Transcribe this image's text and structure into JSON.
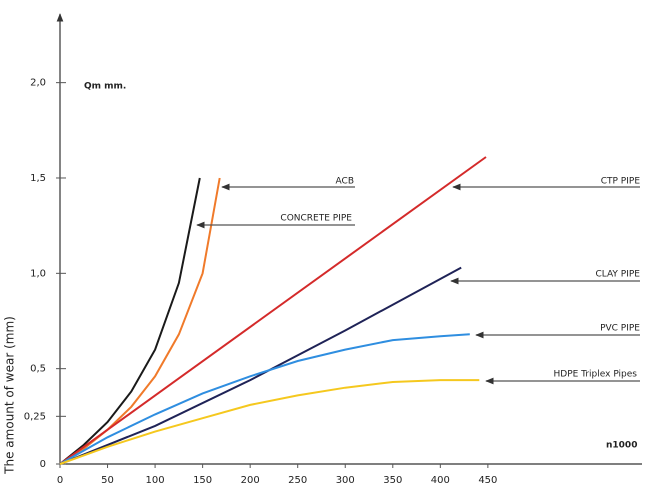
{
  "chart_data": {
    "type": "line",
    "y_label": "The amount of wear (mm)",
    "y_unit": "Qm mm.",
    "x_unit": "n1000",
    "xlim": [
      0,
      610
    ],
    "ylim": [
      0,
      2.36
    ],
    "xticks": [
      0,
      50,
      100,
      150,
      200,
      250,
      300,
      350,
      400,
      450
    ],
    "yticks": [
      0,
      {
        "value": 0.25,
        "label": "0,25"
      },
      {
        "value": 0.5,
        "label": "0,5"
      },
      {
        "value": 1.0,
        "label": "1,0"
      },
      {
        "value": 1.5,
        "label": "1,5"
      },
      {
        "value": 2.0,
        "label": "2,0"
      }
    ],
    "series": [
      {
        "name": "ACB",
        "color": "#1a1a1a",
        "x": [
          0,
          25,
          50,
          75,
          100,
          125,
          147
        ],
        "values": [
          0,
          0.1,
          0.22,
          0.38,
          0.6,
          0.95,
          1.5
        ]
      },
      {
        "name": "CONCRETE PIPE",
        "color": "#f07a2a",
        "x": [
          0,
          25,
          50,
          75,
          100,
          125,
          150,
          168
        ],
        "values": [
          0,
          0.08,
          0.18,
          0.3,
          0.46,
          0.68,
          1.0,
          1.5
        ]
      },
      {
        "name": "CTP PIPE",
        "color": "#d42a2a",
        "x": [
          0,
          448
        ],
        "values": [
          0,
          1.61
        ]
      },
      {
        "name": "CLAY PIPE",
        "color": "#1f2357",
        "x": [
          0,
          100,
          200,
          300,
          422
        ],
        "values": [
          0,
          0.2,
          0.44,
          0.7,
          1.03
        ]
      },
      {
        "name": "PVC PIPE",
        "color": "#2f8ee0",
        "x": [
          0,
          50,
          100,
          150,
          200,
          250,
          300,
          350,
          400,
          431
        ],
        "values": [
          0,
          0.14,
          0.26,
          0.37,
          0.46,
          0.54,
          0.6,
          0.65,
          0.67,
          0.68
        ]
      },
      {
        "name": "HDPE Triplex Pipes",
        "color": "#f5c81e",
        "x": [
          0,
          50,
          100,
          150,
          200,
          250,
          300,
          350,
          400,
          441
        ],
        "values": [
          0,
          0.09,
          0.17,
          0.24,
          0.31,
          0.36,
          0.4,
          0.43,
          0.44,
          0.44
        ]
      }
    ]
  }
}
